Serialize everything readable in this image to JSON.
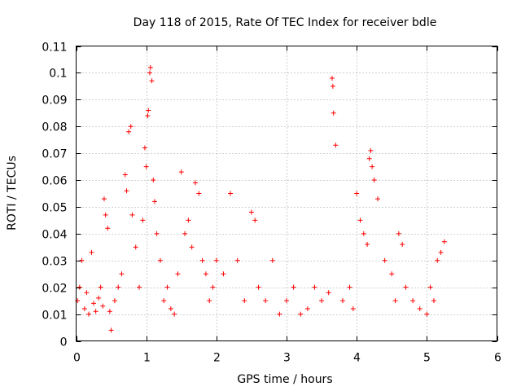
{
  "chart_data": {
    "type": "scatter",
    "title": "Day 118 of 2015, Rate Of TEC Index for receiver bdle",
    "xlabel": "GPS time / hours",
    "ylabel": "ROTI / TECUs",
    "xlim": [
      0,
      6
    ],
    "ylim": [
      0,
      0.11
    ],
    "x_ticks": [
      "0",
      "1",
      "2",
      "3",
      "4",
      "5",
      "6"
    ],
    "y_ticks": [
      "0",
      "0.01",
      "0.02",
      "0.03",
      "0.04",
      "0.05",
      "0.06",
      "0.07",
      "0.08",
      "0.09",
      "0.1",
      "0.11"
    ],
    "grid": true,
    "marker": "+",
    "color": "#ff0000",
    "series": [
      {
        "name": "ROTI",
        "x": [
          0.02,
          0.05,
          0.08,
          0.12,
          0.15,
          0.18,
          0.22,
          0.25,
          0.28,
          0.32,
          0.35,
          0.38,
          0.4,
          0.42,
          0.45,
          0.48,
          0.5,
          0.55,
          0.6,
          0.65,
          0.7,
          0.72,
          0.75,
          0.78,
          0.8,
          0.85,
          0.9,
          0.95,
          0.98,
          1.0,
          1.02,
          1.03,
          1.05,
          1.06,
          1.08,
          1.1,
          1.12,
          1.15,
          1.2,
          1.25,
          1.3,
          1.35,
          1.4,
          1.45,
          1.5,
          1.55,
          1.6,
          1.65,
          1.7,
          1.75,
          1.8,
          1.85,
          1.9,
          1.95,
          2.0,
          2.1,
          2.2,
          2.3,
          2.4,
          2.5,
          2.55,
          2.6,
          2.7,
          2.8,
          2.9,
          3.0,
          3.1,
          3.2,
          3.3,
          3.4,
          3.5,
          3.6,
          3.65,
          3.66,
          3.67,
          3.7,
          3.8,
          3.9,
          3.95,
          4.0,
          4.05,
          4.1,
          4.15,
          4.18,
          4.2,
          4.22,
          4.25,
          4.3,
          4.4,
          4.5,
          4.55,
          4.6,
          4.65,
          4.7,
          4.8,
          4.9,
          5.0,
          5.05,
          5.1,
          5.15,
          5.2,
          5.25
        ],
        "y": [
          0.015,
          0.02,
          0.03,
          0.012,
          0.018,
          0.01,
          0.033,
          0.014,
          0.011,
          0.016,
          0.02,
          0.013,
          0.053,
          0.047,
          0.042,
          0.011,
          0.004,
          0.015,
          0.02,
          0.025,
          0.062,
          0.056,
          0.078,
          0.08,
          0.047,
          0.035,
          0.02,
          0.045,
          0.072,
          0.065,
          0.084,
          0.086,
          0.1,
          0.102,
          0.097,
          0.06,
          0.052,
          0.04,
          0.03,
          0.015,
          0.02,
          0.012,
          0.01,
          0.025,
          0.063,
          0.04,
          0.045,
          0.035,
          0.059,
          0.055,
          0.03,
          0.025,
          0.015,
          0.02,
          0.03,
          0.025,
          0.055,
          0.03,
          0.015,
          0.048,
          0.045,
          0.02,
          0.015,
          0.03,
          0.01,
          0.015,
          0.02,
          0.01,
          0.012,
          0.02,
          0.015,
          0.018,
          0.098,
          0.095,
          0.085,
          0.073,
          0.015,
          0.02,
          0.012,
          0.055,
          0.045,
          0.04,
          0.036,
          0.068,
          0.071,
          0.065,
          0.06,
          0.053,
          0.03,
          0.025,
          0.015,
          0.04,
          0.036,
          0.02,
          0.015,
          0.012,
          0.01,
          0.02,
          0.015,
          0.03,
          0.033,
          0.037
        ]
      }
    ]
  }
}
